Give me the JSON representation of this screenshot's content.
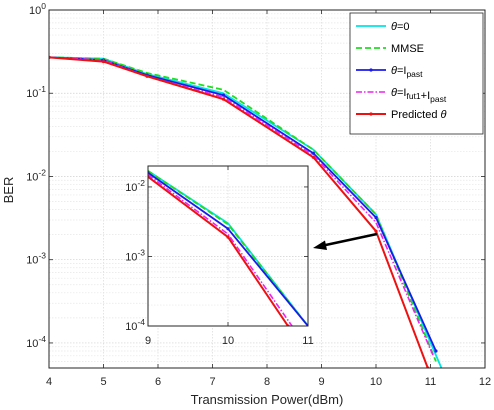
{
  "chart_data": {
    "type": "line",
    "title": "",
    "xlabel": "Transmission Power(dBm)",
    "ylabel": "BER",
    "x_scale": "linear",
    "y_scale": "log",
    "xlim": [
      4,
      12
    ],
    "ylim": [
      5e-05,
      1
    ],
    "xticks": [
      "4",
      "5",
      "6",
      "7",
      "8",
      "9",
      "10",
      "11",
      "12"
    ],
    "yticks": [
      {
        "value": 1,
        "base": "10",
        "exp": "0"
      },
      {
        "value": 0.1,
        "base": "10",
        "exp": "-1"
      },
      {
        "value": 0.01,
        "base": "10",
        "exp": "-2"
      },
      {
        "value": 0.001,
        "base": "10",
        "exp": "-3"
      },
      {
        "value": 0.0001,
        "base": "10",
        "exp": "-4"
      }
    ],
    "grid": true,
    "legend_position": "top-right",
    "series": [
      {
        "key": "theta0",
        "legend": [
          {
            "t": "θ",
            "s": "italic"
          },
          {
            "t": "=0"
          }
        ],
        "color": "#00e5e5",
        "dash": "solid",
        "marker": "none",
        "x": [
          4,
          5,
          5.8,
          7.2,
          8.85,
          10.0,
          11.2
        ],
        "y": [
          0.27,
          0.26,
          0.17,
          0.1,
          0.021,
          0.0035,
          5e-05
        ]
      },
      {
        "key": "mmse",
        "legend": [
          {
            "t": "MMSE"
          }
        ],
        "color": "#22dd22",
        "dash": "dashed",
        "marker": "none",
        "x": [
          4,
          5,
          5.8,
          7.2,
          8.85,
          10.0,
          11.1
        ],
        "y": [
          0.27,
          0.26,
          0.175,
          0.11,
          0.021,
          0.0035,
          6e-05
        ]
      },
      {
        "key": "past",
        "legend": [
          {
            "t": "θ",
            "s": "italic"
          },
          {
            "t": "=I"
          },
          {
            "t": "past",
            "s": "sub"
          }
        ],
        "color": "#1a1aee",
        "dash": "solid",
        "marker": "dot",
        "x": [
          4,
          5,
          5.8,
          7.2,
          8.85,
          10.0,
          11.1
        ],
        "y": [
          0.27,
          0.25,
          0.165,
          0.095,
          0.019,
          0.0032,
          8e-05
        ]
      },
      {
        "key": "fut",
        "legend": [
          {
            "t": "θ",
            "s": "italic"
          },
          {
            "t": "=I"
          },
          {
            "t": "fut1",
            "s": "sub"
          },
          {
            "t": "+I"
          },
          {
            "t": "past",
            "s": "sub"
          }
        ],
        "color": "#ee22ee",
        "dash": "dashdot",
        "marker": "none",
        "x": [
          4,
          5,
          5.8,
          7.2,
          8.85,
          10.0,
          11.05
        ],
        "y": [
          0.27,
          0.25,
          0.16,
          0.09,
          0.018,
          0.0028,
          7e-05
        ]
      },
      {
        "key": "pred",
        "legend": [
          {
            "t": "Predicted "
          },
          {
            "t": "θ",
            "s": "italic"
          }
        ],
        "color": "#ee1111",
        "dash": "solid",
        "marker": "dot",
        "x": [
          4,
          5,
          5.8,
          7.2,
          8.85,
          10.0,
          10.95
        ],
        "y": [
          0.27,
          0.24,
          0.16,
          0.085,
          0.017,
          0.0022,
          5e-05
        ]
      }
    ],
    "inset": {
      "xlim": [
        9,
        11
      ],
      "ylim": [
        0.0001,
        0.02
      ],
      "xticks": [
        "9",
        "10",
        "11"
      ],
      "yticks": [
        {
          "value": 0.01,
          "base": "10",
          "exp": "-2"
        },
        {
          "value": 0.001,
          "base": "10",
          "exp": "-3"
        },
        {
          "value": 0.0001,
          "base": "10",
          "exp": "-4"
        }
      ],
      "series": {
        "theta0": {
          "x": [
            9,
            10,
            11
          ],
          "y": [
            0.017,
            0.003,
            0.0001
          ]
        },
        "mmse": {
          "x": [
            9,
            10,
            11
          ],
          "y": [
            0.017,
            0.0029,
            0.0001
          ]
        },
        "past": {
          "x": [
            9,
            10,
            11
          ],
          "y": [
            0.016,
            0.0025,
            0.0001
          ]
        },
        "fut": {
          "x": [
            9,
            10,
            10.8
          ],
          "y": [
            0.015,
            0.0021,
            0.0001
          ]
        },
        "pred": {
          "x": [
            9,
            10,
            10.75
          ],
          "y": [
            0.014,
            0.0019,
            0.0001
          ]
        }
      }
    }
  }
}
